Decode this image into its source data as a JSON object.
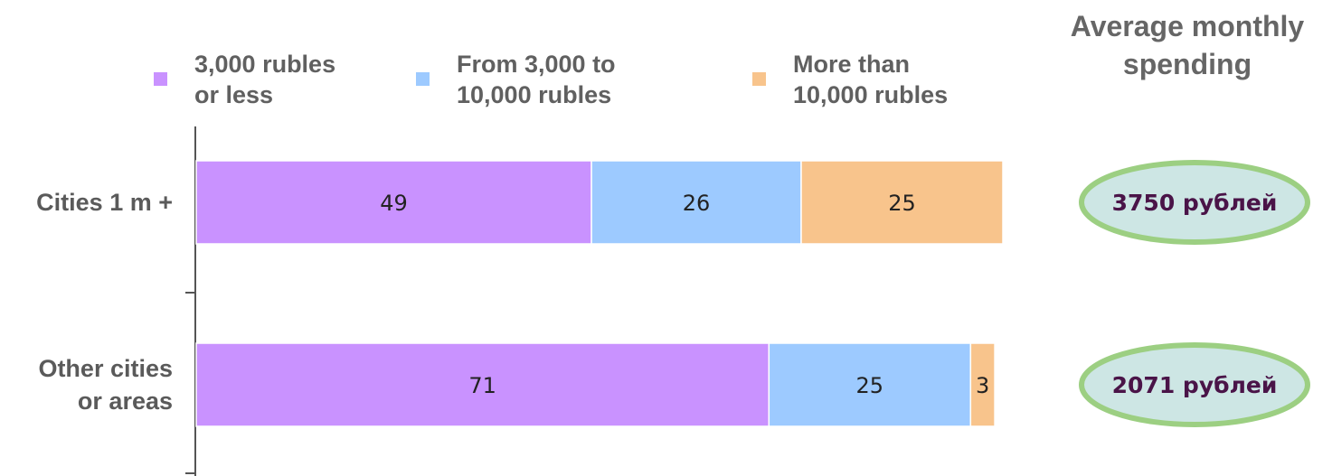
{
  "chart_data": {
    "type": "bar",
    "orientation": "horizontal",
    "stacked": true,
    "categories": [
      [
        "Cities 1 m +"
      ],
      [
        "Other cities",
        "or areas"
      ]
    ],
    "series": [
      {
        "name": [
          "3,000 rubles",
          "or less"
        ],
        "values": [
          49,
          71
        ],
        "color": "#c992ff"
      },
      {
        "name": [
          "From 3,000 to",
          "10,000 rubles"
        ],
        "values": [
          26,
          25
        ],
        "color": "#9dcaff"
      },
      {
        "name": [
          "More than",
          "10,000 rubles"
        ],
        "values": [
          25,
          3
        ],
        "color": "#f8c48c"
      }
    ],
    "xlim": [
      0,
      100
    ],
    "legend_position": "top",
    "side_panel": {
      "title": [
        "Average monthly",
        "spending"
      ],
      "values": [
        "3750 рублей",
        "2071 рублей"
      ],
      "ellipse_fill": "#cde6e4",
      "ellipse_stroke": "#9ccf82"
    }
  }
}
